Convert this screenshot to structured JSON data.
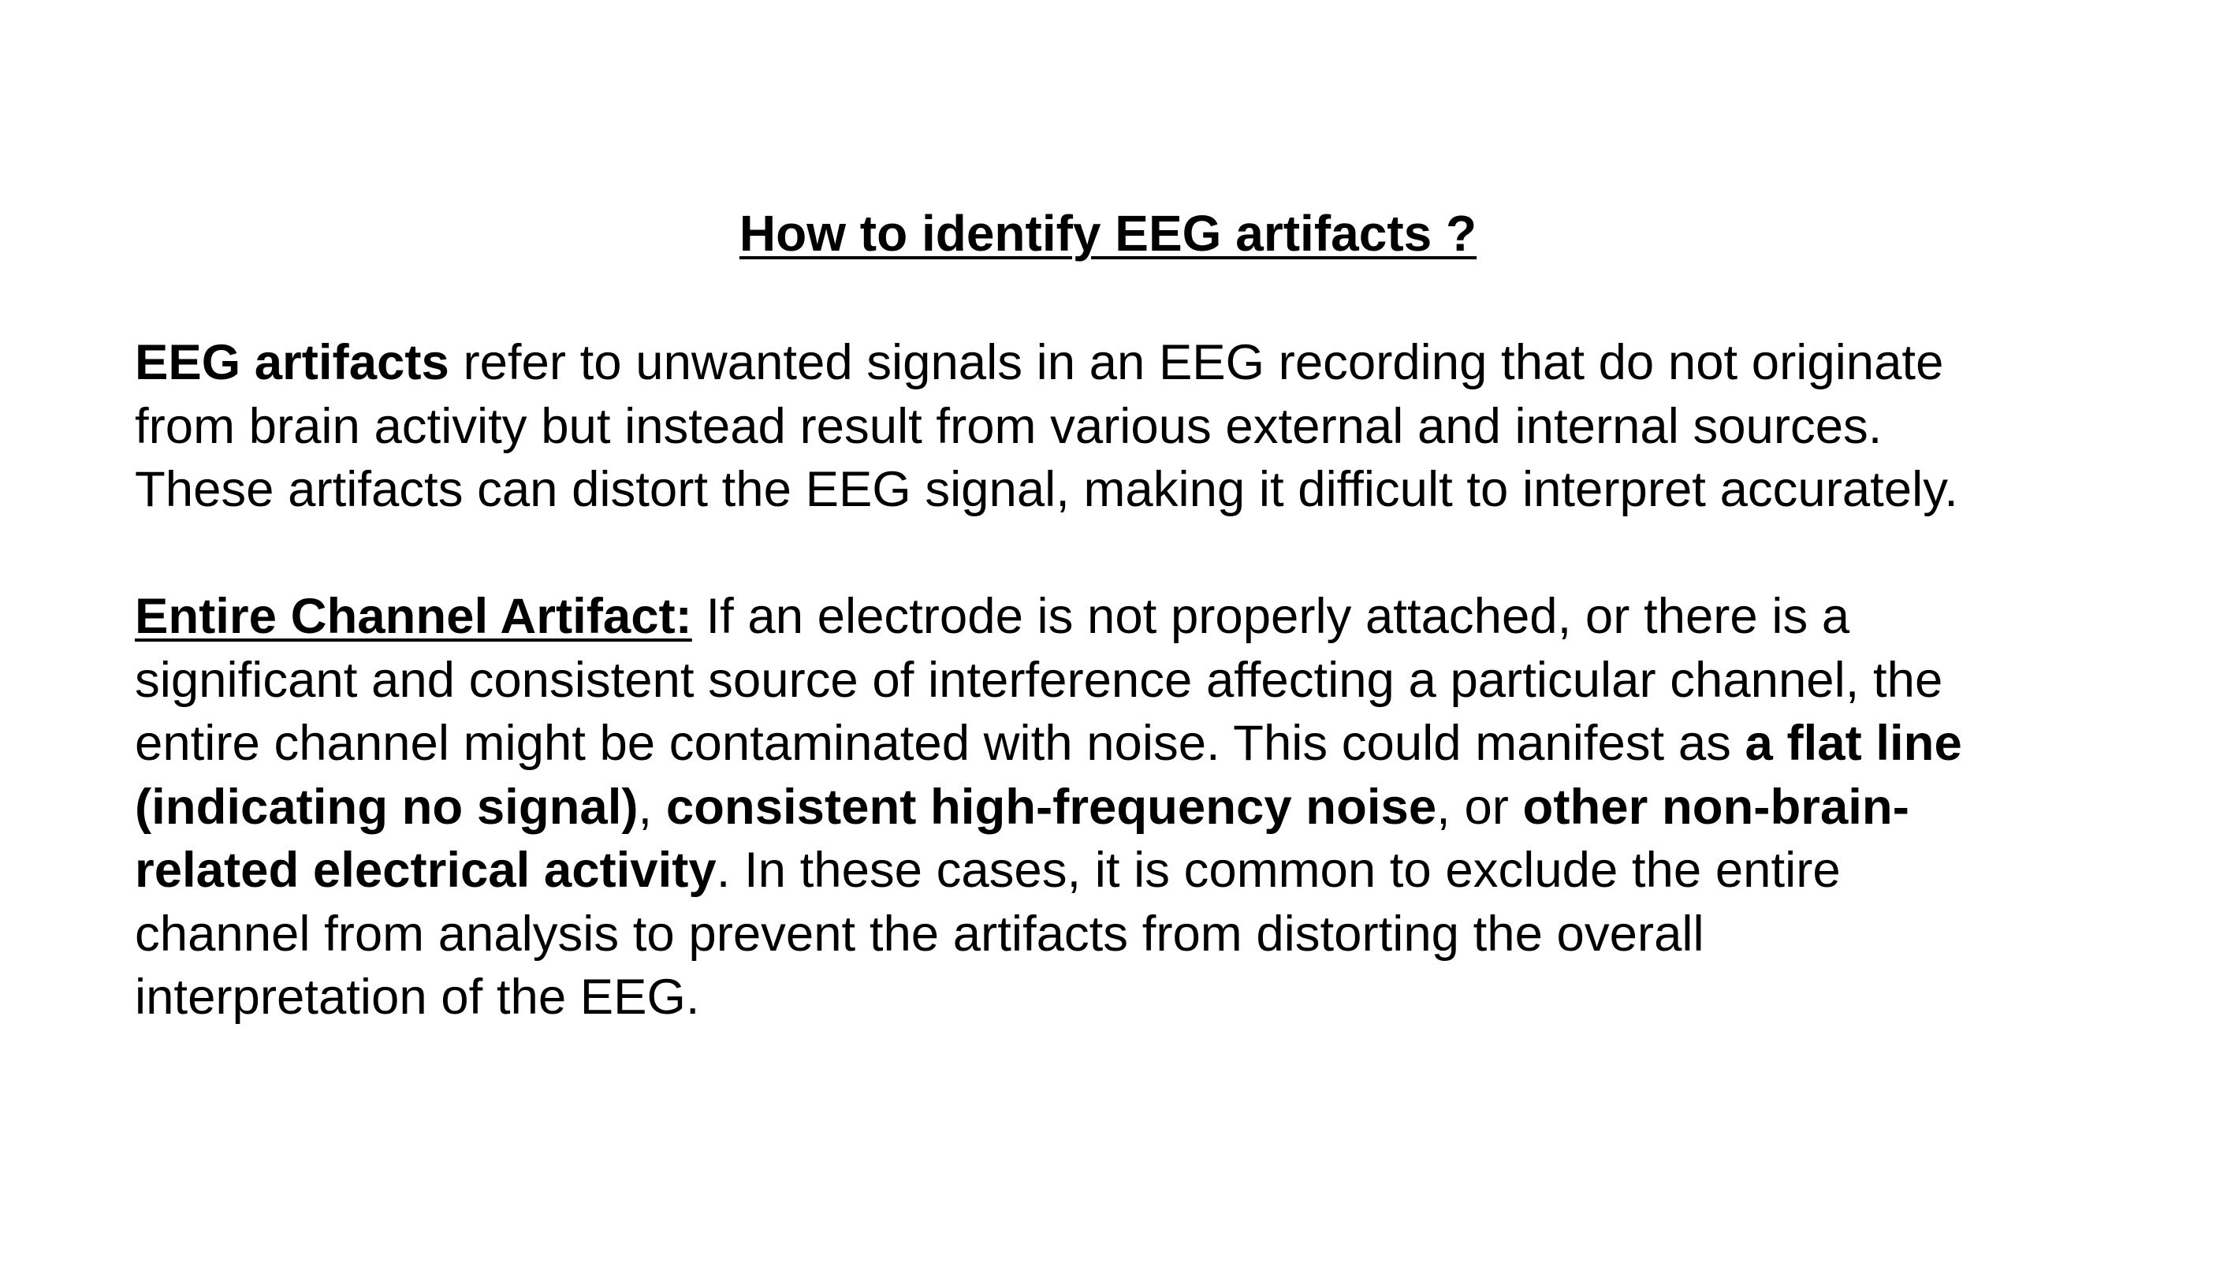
{
  "title": "How to identify EEG artifacts ?",
  "intro": {
    "term": "EEG artifacts",
    "line1_rest": " refer to unwanted signals in an EEG recording that do not originate",
    "line2": "from brain activity but instead result from various external and internal sources.",
    "line3": "These artifacts can distort the EEG signal, making it difficult to interpret accurately."
  },
  "channel_artifact": {
    "heading": "Entire Channel Artifact:",
    "line1_rest": " If an electrode is not properly attached, or there is a",
    "line2": "significant and consistent source of interference affecting a particular channel, the",
    "line3_text": "entire channel might be contaminated with noise. This could manifest as ",
    "line3_bold": "a flat line",
    "line4_bold1": "(indicating no signal)",
    "line4_sep1": ", ",
    "line4_bold2": "consistent high-frequency noise",
    "line4_sep2": ", or ",
    "line4_bold3": "other non-brain-",
    "line5_bold": "related electrical activity",
    "line5_rest": ". In these cases, it is common to exclude the entire",
    "line6": "channel from analysis to prevent the artifacts from distorting the overall",
    "line7": "interpretation of the EEG."
  }
}
